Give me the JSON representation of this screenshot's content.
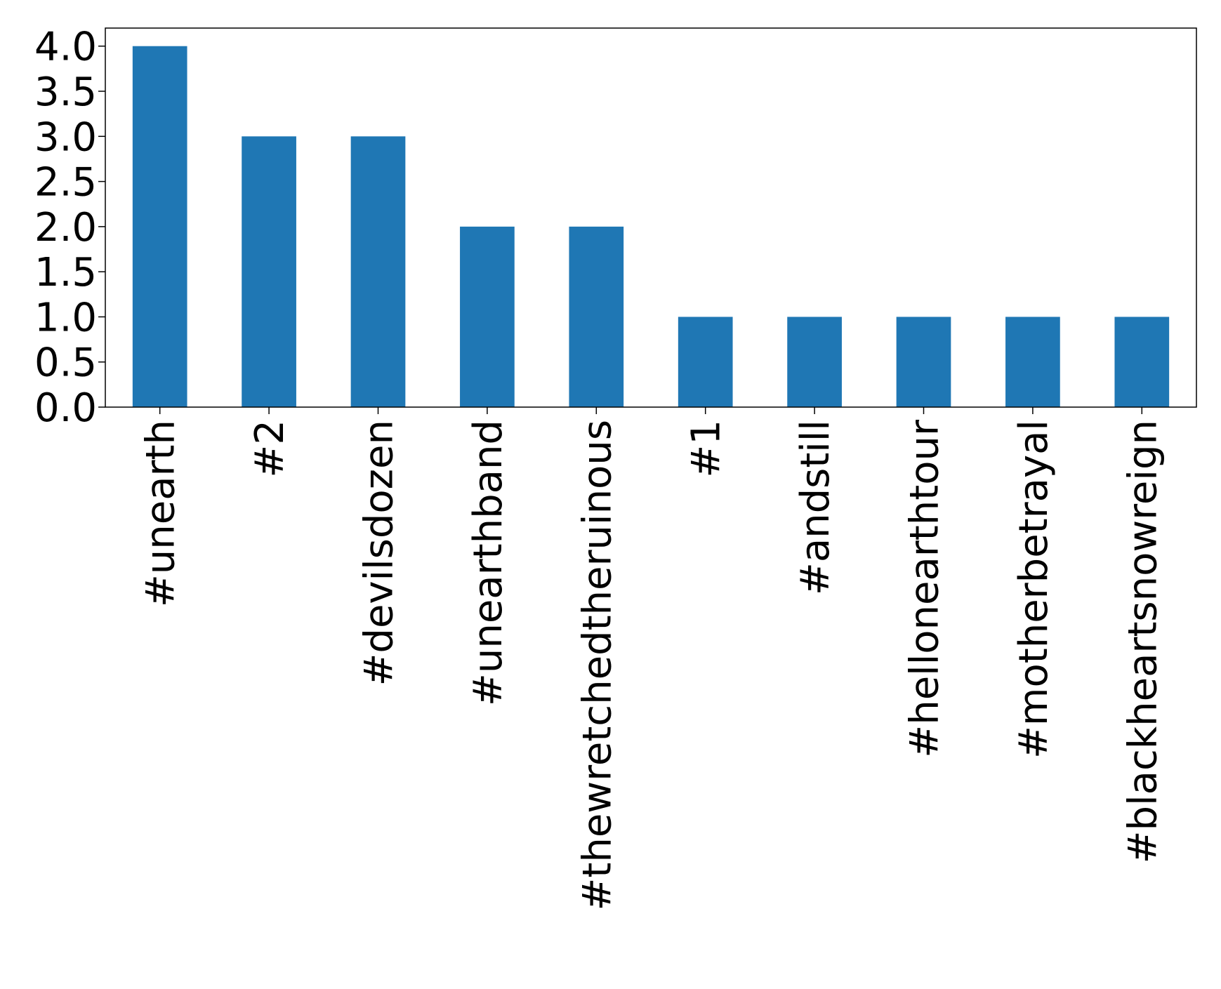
{
  "chart_data": {
    "type": "bar",
    "categories": [
      "#unearth",
      "#2",
      "#devilsdozen",
      "#unearthband",
      "#thewretchedtheruinous",
      "#1",
      "#andstill",
      "#hellonearthtour",
      "#motherbetrayal",
      "#blackheartsnowreign"
    ],
    "values": [
      4,
      3,
      3,
      2,
      2,
      1,
      1,
      1,
      1,
      1
    ],
    "yticks": [
      "0.0",
      "0.5",
      "1.0",
      "1.5",
      "2.0",
      "2.5",
      "3.0",
      "3.5",
      "4.0"
    ],
    "ylim": [
      0,
      4.2
    ],
    "title": "",
    "xlabel": "",
    "ylabel": "",
    "grid": false,
    "bar_color": "#1f77b4"
  }
}
